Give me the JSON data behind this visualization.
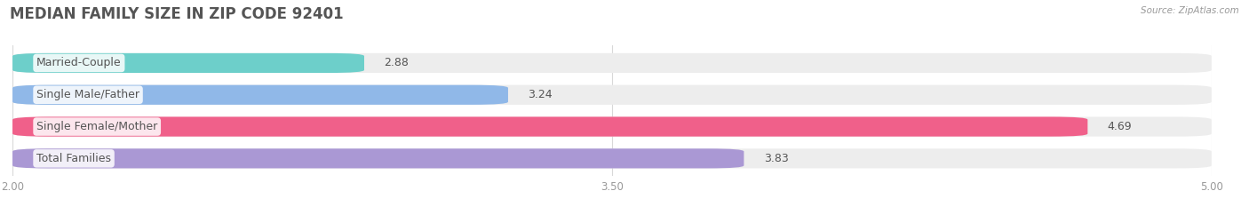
{
  "title": "MEDIAN FAMILY SIZE IN ZIP CODE 92401",
  "source": "Source: ZipAtlas.com",
  "categories": [
    "Married-Couple",
    "Single Male/Father",
    "Single Female/Mother",
    "Total Families"
  ],
  "values": [
    2.88,
    3.24,
    4.69,
    3.83
  ],
  "colors": [
    "#6dcfca",
    "#90b8e8",
    "#f0608a",
    "#aa98d4"
  ],
  "xlim": [
    2.0,
    5.0
  ],
  "xticks": [
    2.0,
    3.5,
    5.0
  ],
  "xtick_labels": [
    "2.00",
    "3.50",
    "5.00"
  ],
  "title_fontsize": 12,
  "label_fontsize": 9,
  "value_fontsize": 9,
  "bar_height": 0.62,
  "bar_gap": 0.18,
  "background_color": "#ffffff",
  "bg_bar_color": "#ededed",
  "grid_color": "#d8d8d8",
  "label_color": "#555555",
  "value_color": "#555555",
  "title_color": "#555555"
}
